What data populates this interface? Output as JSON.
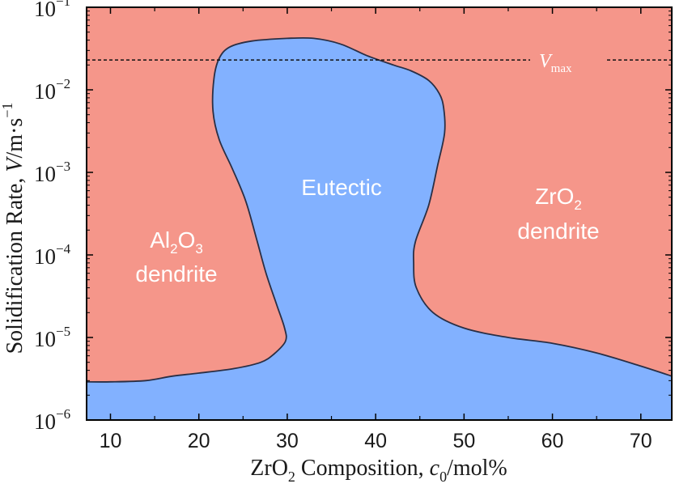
{
  "chart_data": {
    "type": "area",
    "title": "",
    "xlabel": {
      "main": "ZrO",
      "sub": "2",
      "rest": " Composition, ",
      "var": "c",
      "var_sub": "0",
      "unit": "/mol%"
    },
    "ylabel": {
      "prefix": "Solidification Rate, ",
      "var": "V",
      "unit": "/m·s",
      "unit_exp": "−1"
    },
    "x_ticks": [
      "10",
      "20",
      "30",
      "40",
      "50",
      "60",
      "70"
    ],
    "x_tick_values": [
      10,
      20,
      30,
      40,
      50,
      60,
      70
    ],
    "xlim": [
      7.3,
      73.5
    ],
    "y_scale": "log",
    "ylim": [
      1e-06,
      0.1
    ],
    "y_ticks": [
      {
        "base": "10",
        "exp": "−6",
        "value": 1e-06
      },
      {
        "base": "10",
        "exp": "−5",
        "value": 1e-05
      },
      {
        "base": "10",
        "exp": "−4",
        "value": 0.0001
      },
      {
        "base": "10",
        "exp": "−3",
        "value": 0.001
      },
      {
        "base": "10",
        "exp": "−2",
        "value": 0.01
      },
      {
        "base": "10",
        "exp": "−1",
        "value": 0.1
      }
    ],
    "colors": {
      "dendrite": "#f5968a",
      "eutectic": "#82b1ff",
      "boundary": "#2a2f45"
    },
    "regions": {
      "al2o3": {
        "main": "Al",
        "sub1": "2",
        "mid": "O",
        "sub2": "3",
        "line2": "dendrite"
      },
      "eutectic": "Eutectic",
      "zro2": {
        "main": "ZrO",
        "sub": "2",
        "line2": "dendrite"
      }
    },
    "vmax": {
      "var": "V",
      "sub": "max",
      "value": 0.023
    },
    "eutectic_boundary": [
      [
        7.3,
        2.9e-06
      ],
      [
        10,
        2.9e-06
      ],
      [
        14,
        3e-06
      ],
      [
        17,
        3.4e-06
      ],
      [
        20,
        3.7e-06
      ],
      [
        24,
        4.2e-06
      ],
      [
        27,
        5e-06
      ],
      [
        28.5,
        6.3e-06
      ],
      [
        29.8,
        9e-06
      ],
      [
        29.7,
        1.3e-05
      ],
      [
        28.8,
        2.5e-05
      ],
      [
        27.6,
        6e-05
      ],
      [
        26.5,
        0.00016
      ],
      [
        25.3,
        0.00045
      ],
      [
        23.8,
        0.0011
      ],
      [
        22.3,
        0.0025
      ],
      [
        21.6,
        0.0055
      ],
      [
        21.7,
        0.0135
      ],
      [
        22.3,
        0.024
      ],
      [
        23.5,
        0.033
      ],
      [
        26,
        0.039
      ],
      [
        30,
        0.042
      ],
      [
        33,
        0.042
      ],
      [
        36,
        0.036
      ],
      [
        39,
        0.026
      ],
      [
        42,
        0.02
      ],
      [
        44,
        0.017
      ],
      [
        46,
        0.013
      ],
      [
        47.2,
        0.009
      ],
      [
        47.7,
        0.006
      ],
      [
        47.8,
        0.003
      ],
      [
        47.0,
        0.0012
      ],
      [
        46.0,
        0.0004
      ],
      [
        44.5,
        0.000145
      ],
      [
        44.3,
        8e-05
      ],
      [
        44.6,
        4e-05
      ],
      [
        46.5,
        2e-05
      ],
      [
        50,
        1.3e-05
      ],
      [
        55,
        1e-05
      ],
      [
        60,
        8.5e-06
      ],
      [
        65,
        6.5e-06
      ],
      [
        70,
        4.5e-06
      ],
      [
        73.5,
        3.4e-06
      ]
    ]
  }
}
